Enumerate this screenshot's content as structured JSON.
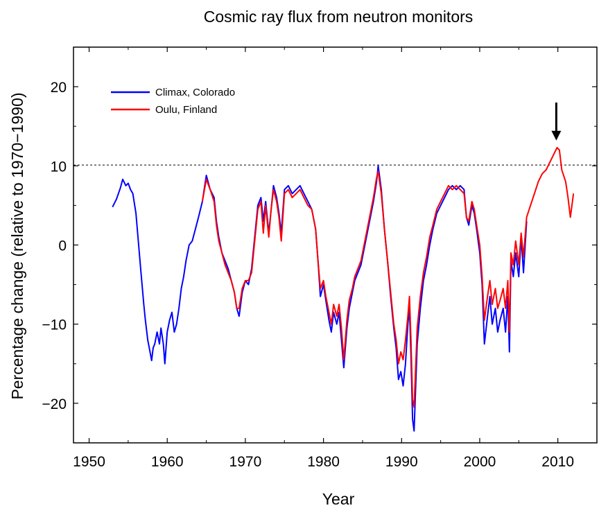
{
  "chart_data": {
    "type": "line",
    "title": "Cosmic ray flux from neutron monitors",
    "xlabel": "Year",
    "ylabel": "Percentage change (relative to 1970−1990)",
    "xlim": [
      1948,
      2015
    ],
    "ylim": [
      -25,
      25
    ],
    "xticks": [
      1950,
      1960,
      1970,
      1980,
      1990,
      2000,
      2010
    ],
    "yticks": [
      -20,
      -10,
      0,
      10,
      20
    ],
    "xtick_labels": [
      "1950",
      "1960",
      "1970",
      "1980",
      "1990",
      "2000",
      "2010"
    ],
    "ytick_labels": [
      "−20",
      "−10",
      "0",
      "10",
      "20"
    ],
    "reference_line": {
      "y": 10.1,
      "style": "dashed"
    },
    "annotation": {
      "type": "arrow",
      "x": 2009.8,
      "y_from": 18,
      "y_to": 13.2
    },
    "legend": {
      "placement": "top-left"
    },
    "series": [
      {
        "name": "Climax, Colorado",
        "color": "#0000ff",
        "x": [
          1953.0,
          1953.5,
          1954.0,
          1954.3,
          1954.7,
          1955.0,
          1955.3,
          1955.6,
          1956.0,
          1956.3,
          1956.6,
          1957.0,
          1957.2,
          1957.5,
          1957.8,
          1958.0,
          1958.2,
          1958.4,
          1958.7,
          1959.0,
          1959.2,
          1959.5,
          1959.7,
          1960.0,
          1960.3,
          1960.6,
          1960.9,
          1961.2,
          1961.5,
          1961.8,
          1962.1,
          1962.4,
          1962.8,
          1963.2,
          1963.6,
          1964.0,
          1964.5,
          1965.0,
          1965.5,
          1966.0,
          1966.3,
          1966.6,
          1967.0,
          1967.4,
          1967.8,
          1968.2,
          1968.6,
          1968.9,
          1969.2,
          1969.6,
          1970.0,
          1970.4,
          1970.8,
          1971.2,
          1971.6,
          1972.0,
          1972.3,
          1972.6,
          1973.0,
          1973.3,
          1973.6,
          1974.0,
          1974.3,
          1974.6,
          1975.0,
          1975.5,
          1976.0,
          1976.5,
          1977.0,
          1977.5,
          1978.0,
          1978.5,
          1979.0,
          1979.3,
          1979.6,
          1980.0,
          1980.3,
          1980.7,
          1981.0,
          1981.3,
          1981.7,
          1982.0,
          1982.3,
          1982.6,
          1983.0,
          1983.3,
          1983.7,
          1984.0,
          1984.4,
          1984.8,
          1985.2,
          1985.6,
          1986.0,
          1986.4,
          1986.8,
          1987.0,
          1987.4,
          1987.8,
          1988.2,
          1988.6,
          1989.0,
          1989.3,
          1989.6,
          1989.9,
          1990.2,
          1990.5,
          1990.8,
          1991.0,
          1991.2,
          1991.4,
          1991.6,
          1992.0,
          1992.4,
          1992.8,
          1993.2,
          1993.6,
          1994.0,
          1994.5,
          1995.0,
          1995.5,
          1996.0,
          1996.5,
          1997.0,
          1997.5,
          1998.0,
          1998.3,
          1998.6,
          1999.0,
          1999.3,
          1999.6,
          2000.0,
          2000.3,
          2000.6,
          2001.0,
          2001.3,
          2001.6,
          2002.0,
          2002.3,
          2002.6,
          2003.0,
          2003.3,
          2003.6,
          2003.8,
          2004.0,
          2004.3,
          2004.6,
          2005.0,
          2005.3,
          2005.6,
          2006.0
        ],
        "y": [
          4.8,
          5.8,
          7.2,
          8.3,
          7.5,
          7.8,
          7.0,
          6.5,
          4.0,
          0.5,
          -3.0,
          -7.5,
          -9.5,
          -12.0,
          -13.5,
          -14.6,
          -13.0,
          -12.5,
          -11.0,
          -12.5,
          -10.5,
          -12.5,
          -15.0,
          -11.0,
          -9.5,
          -8.5,
          -11.0,
          -10.0,
          -8.0,
          -5.5,
          -4.0,
          -2.0,
          0.0,
          0.5,
          2.0,
          3.5,
          5.5,
          8.8,
          7.0,
          6.0,
          3.0,
          1.0,
          -1.0,
          -2.0,
          -3.0,
          -4.5,
          -6.0,
          -8.0,
          -9.0,
          -6.0,
          -4.5,
          -5.0,
          -3.0,
          1.0,
          5.0,
          6.0,
          3.0,
          5.5,
          1.5,
          4.5,
          7.5,
          6.0,
          4.0,
          1.5,
          7.0,
          7.5,
          6.5,
          7.0,
          7.5,
          6.5,
          5.5,
          4.5,
          2.0,
          -2.0,
          -6.5,
          -5.0,
          -7.0,
          -9.5,
          -11.0,
          -8.5,
          -10.0,
          -8.5,
          -12.0,
          -15.5,
          -10.5,
          -8.0,
          -6.0,
          -4.5,
          -3.5,
          -2.5,
          -0.5,
          1.5,
          3.5,
          5.5,
          8.0,
          10.0,
          7.0,
          2.0,
          -2.0,
          -6.5,
          -10.5,
          -13.0,
          -17.0,
          -16.0,
          -17.8,
          -15.0,
          -10.0,
          -8.0,
          -14.0,
          -22.0,
          -23.5,
          -12.5,
          -8.0,
          -4.5,
          -2.5,
          0.0,
          2.0,
          4.0,
          5.0,
          6.0,
          7.0,
          7.5,
          7.0,
          7.5,
          7.0,
          3.5,
          2.5,
          5.0,
          4.0,
          2.0,
          -1.0,
          -5.0,
          -12.5,
          -9.0,
          -6.5,
          -10.0,
          -8.0,
          -11.0,
          -9.5,
          -8.0,
          -11.0,
          -6.5,
          -13.5,
          -2.0,
          -4.0,
          -1.0,
          -4.0,
          1.0,
          -3.5,
          3.0
        ]
      },
      {
        "name": "Oulu, Finland",
        "color": "#ff0000",
        "x": [
          1964.5,
          1965.0,
          1965.5,
          1966.0,
          1966.3,
          1966.6,
          1967.0,
          1967.4,
          1967.8,
          1968.2,
          1968.6,
          1968.9,
          1969.2,
          1969.6,
          1970.0,
          1970.4,
          1970.8,
          1971.2,
          1971.6,
          1972.0,
          1972.3,
          1972.6,
          1973.0,
          1973.3,
          1973.6,
          1974.0,
          1974.3,
          1974.6,
          1975.0,
          1975.5,
          1976.0,
          1976.5,
          1977.0,
          1977.5,
          1978.0,
          1978.5,
          1979.0,
          1979.3,
          1979.6,
          1980.0,
          1980.3,
          1980.7,
          1981.0,
          1981.3,
          1981.7,
          1982.0,
          1982.3,
          1982.6,
          1983.0,
          1983.3,
          1983.7,
          1984.0,
          1984.4,
          1984.8,
          1985.2,
          1985.6,
          1986.0,
          1986.4,
          1986.8,
          1987.0,
          1987.4,
          1987.8,
          1988.2,
          1988.6,
          1989.0,
          1989.3,
          1989.6,
          1989.9,
          1990.2,
          1990.5,
          1990.8,
          1991.0,
          1991.2,
          1991.4,
          1991.6,
          1992.0,
          1992.4,
          1992.8,
          1993.2,
          1993.6,
          1994.0,
          1994.5,
          1995.0,
          1995.5,
          1996.0,
          1996.5,
          1997.0,
          1997.5,
          1998.0,
          1998.3,
          1998.6,
          1999.0,
          1999.3,
          1999.6,
          2000.0,
          2000.3,
          2000.6,
          2001.0,
          2001.3,
          2001.6,
          2002.0,
          2002.3,
          2002.6,
          2003.0,
          2003.3,
          2003.6,
          2003.8,
          2004.0,
          2004.3,
          2004.6,
          2005.0,
          2005.3,
          2005.6,
          2006.0,
          2006.5,
          2007.0,
          2007.5,
          2008.0,
          2008.5,
          2009.0,
          2009.5,
          2009.9,
          2010.2,
          2010.5,
          2011.0,
          2011.3,
          2011.6,
          2012.0
        ],
        "y": [
          5.5,
          8.3,
          7.0,
          5.5,
          2.5,
          0.5,
          -1.0,
          -2.5,
          -3.5,
          -4.5,
          -6.0,
          -8.0,
          -8.0,
          -5.5,
          -4.5,
          -4.5,
          -3.5,
          0.5,
          4.5,
          5.5,
          1.5,
          5.0,
          1.0,
          4.5,
          7.0,
          5.5,
          3.5,
          0.5,
          6.5,
          7.0,
          6.0,
          6.5,
          7.0,
          6.0,
          5.0,
          4.5,
          2.0,
          -2.0,
          -5.5,
          -4.5,
          -6.5,
          -8.5,
          -10.0,
          -7.5,
          -9.0,
          -7.5,
          -10.5,
          -14.5,
          -9.5,
          -7.0,
          -5.5,
          -4.0,
          -3.0,
          -2.0,
          0.0,
          2.0,
          4.0,
          6.0,
          8.5,
          9.3,
          6.5,
          2.0,
          -2.0,
          -6.0,
          -10.0,
          -12.0,
          -15.0,
          -13.5,
          -14.5,
          -12.0,
          -9.0,
          -6.5,
          -12.0,
          -19.5,
          -20.5,
          -10.5,
          -6.5,
          -3.5,
          -1.5,
          1.0,
          2.5,
          4.5,
          5.5,
          6.5,
          7.5,
          7.0,
          7.5,
          7.0,
          6.5,
          3.5,
          3.0,
          5.5,
          4.5,
          2.5,
          0.0,
          -4.0,
          -9.5,
          -6.5,
          -4.5,
          -7.5,
          -5.5,
          -8.0,
          -7.0,
          -5.5,
          -8.0,
          -4.5,
          -11.0,
          -1.0,
          -2.5,
          0.5,
          -2.5,
          1.5,
          -1.5,
          3.5,
          5.0,
          6.5,
          8.0,
          9.0,
          9.5,
          10.5,
          11.5,
          12.3,
          12.0,
          9.5,
          8.0,
          6.0,
          3.5,
          6.5
        ]
      }
    ]
  }
}
